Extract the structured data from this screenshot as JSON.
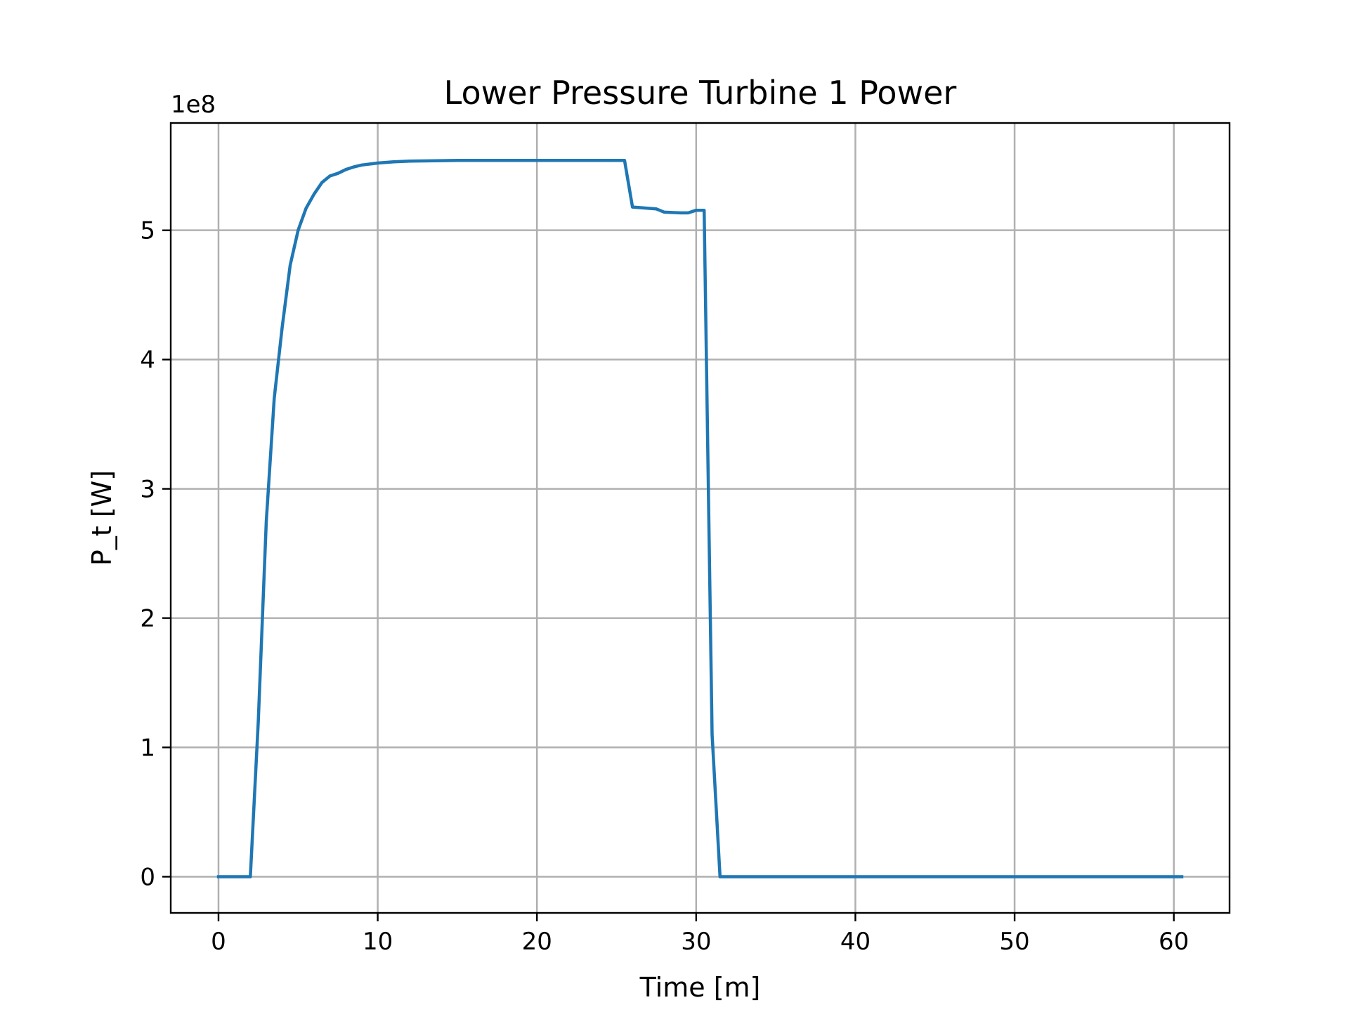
{
  "chart_data": {
    "type": "line",
    "title": "Lower Pressure Turbine 1 Power",
    "xlabel": "Time [m]",
    "ylabel": "P_t [W]",
    "y_offset_label": "1e8",
    "y_scale_factor": 100000000,
    "xlim": [
      -3,
      63.5
    ],
    "ylim": [
      -0.28,
      5.83
    ],
    "x_ticks": [
      0,
      10,
      20,
      30,
      40,
      50,
      60
    ],
    "x_tick_labels": [
      "0",
      "10",
      "20",
      "30",
      "40",
      "50",
      "60"
    ],
    "y_ticks": [
      0,
      1,
      2,
      3,
      4,
      5
    ],
    "y_tick_labels": [
      "0",
      "1",
      "2",
      "3",
      "4",
      "5"
    ],
    "grid": true,
    "series": [
      {
        "color": "#1f77b4",
        "x": [
          0,
          0.5,
          1.0,
          1.5,
          2.0,
          2.5,
          3.0,
          3.5,
          4.0,
          4.5,
          5.0,
          5.5,
          6.0,
          6.5,
          7.0,
          7.5,
          8.0,
          8.5,
          9.0,
          10.0,
          11.0,
          12.0,
          15.0,
          20.0,
          25.0,
          25.5,
          26.0,
          27.0,
          27.5,
          28.0,
          29.0,
          29.5,
          30.0,
          30.5,
          31.0,
          31.5,
          32.0,
          40.0,
          50.0,
          60.5
        ],
        "y": [
          0,
          0,
          0,
          0,
          0,
          1.2,
          2.75,
          3.7,
          4.25,
          4.73,
          5.0,
          5.17,
          5.28,
          5.37,
          5.42,
          5.44,
          5.47,
          5.49,
          5.505,
          5.52,
          5.53,
          5.535,
          5.54,
          5.54,
          5.54,
          5.54,
          5.18,
          5.17,
          5.165,
          5.14,
          5.135,
          5.135,
          5.155,
          5.155,
          1.1,
          0,
          0,
          0,
          0,
          0
        ]
      }
    ]
  }
}
